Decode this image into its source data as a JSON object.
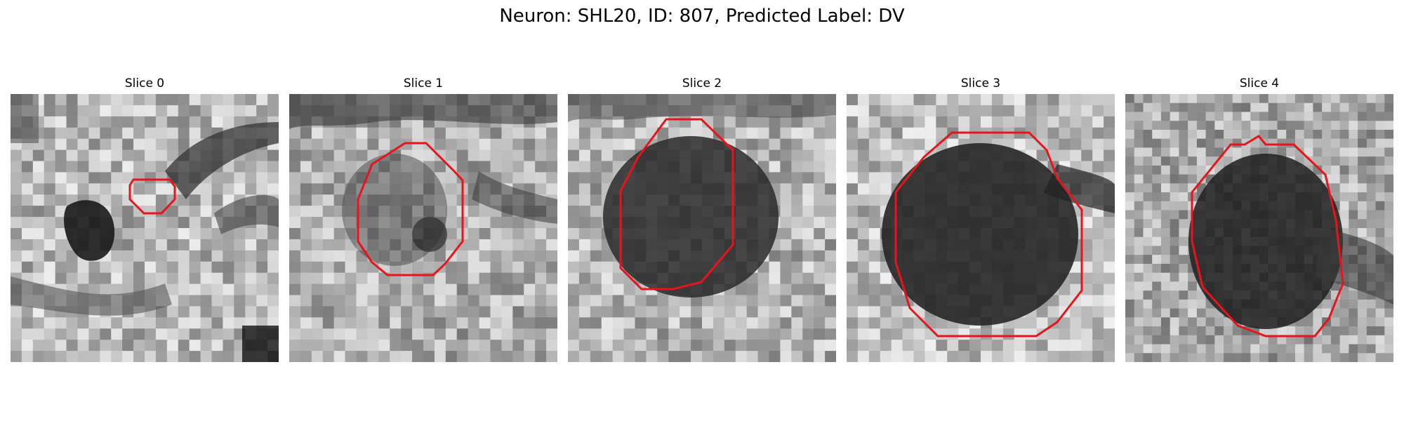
{
  "figure": {
    "title": "Neuron: SHL20, ID: 807, Predicted Label: DV",
    "contour_color": "#e8141c",
    "colormap": "gray",
    "panels": [
      {
        "title": "Slice 0"
      },
      {
        "title": "Slice 1"
      },
      {
        "title": "Slice 2"
      },
      {
        "title": "Slice 3"
      },
      {
        "title": "Slice 4"
      }
    ]
  }
}
